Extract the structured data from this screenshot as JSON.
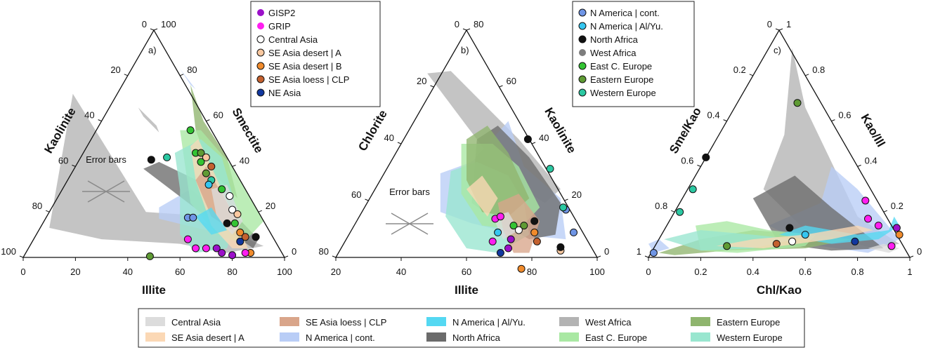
{
  "colors": {
    "GISP2": "#9b10c9",
    "GRIP": "#ff1ef0",
    "Central Asia": "#ffffff",
    "SE Asia desert | A": "#f9c8a0",
    "SE Asia desert | B": "#f08b2c",
    "SE Asia loess | CLP": "#c4612f",
    "NE Asia": "#11379f",
    "N America | cont.": "#6f95e5",
    "N America | Al/Yu.": "#35c6f0",
    "North Africa": "#111111",
    "West Africa": "#7d7d7d",
    "East C. Europe": "#33c433",
    "Eastern Europe": "#5f9b34",
    "Western Europe": "#2bc8a2"
  },
  "area_colors": {
    "Central Asia": "#dcdcdc",
    "SE Asia desert | A": "#fbd8b5",
    "SE Asia loess | CLP": "#d9a58a",
    "N America | cont.": "#b9cdf6",
    "N America | Al/Yu.": "#54d8f2",
    "North Africa": "#6b6b6b",
    "West Africa": "#b3b3b3",
    "East C. Europe": "#a9e8a3",
    "Eastern Europe": "#8fb56e",
    "Western Europe": "#99e6cf"
  },
  "chart_data": [
    {
      "type": "scatter",
      "panel": "a)",
      "axes": {
        "bottom": "Illite",
        "left": "Kaolinite",
        "right": "Smectite"
      },
      "ticks": {
        "bottom": [
          "0",
          "20",
          "40",
          "60",
          "80",
          "100"
        ],
        "left": [
          "0",
          "20",
          "40",
          "60",
          "80",
          "100"
        ],
        "right": [
          "0",
          "20",
          "40",
          "60",
          "80",
          "100"
        ]
      },
      "points": [
        {
          "series": "N America | cont.",
          "x": [
            63,
            17.5
          ]
        },
        {
          "series": "N America | cont.",
          "x": [
            65,
            17.5
          ]
        },
        {
          "series": "North Africa",
          "x": [
            49,
            43
          ]
        },
        {
          "series": "Western Europe",
          "x": [
            55,
            44
          ]
        },
        {
          "series": "East C. Europe",
          "x": [
            64,
            56
          ]
        },
        {
          "series": "East C. Europe",
          "x": [
            66,
            46
          ]
        },
        {
          "series": "Eastern Europe",
          "x": [
            68,
            46
          ]
        },
        {
          "series": "SE Asia desert | A",
          "x": [
            70,
            44
          ]
        },
        {
          "series": "East C. Europe",
          "x": [
            68,
            42
          ]
        },
        {
          "series": "SE Asia loess | CLP",
          "x": [
            72,
            40
          ]
        },
        {
          "series": "Eastern Europe",
          "x": [
            70,
            37
          ]
        },
        {
          "series": "Western Europe",
          "x": [
            72,
            34
          ]
        },
        {
          "series": "East C. Europe",
          "x": [
            76,
            30
          ]
        },
        {
          "series": "Central Asia",
          "x": [
            79,
            27
          ]
        },
        {
          "series": "N America | Al/Yu.",
          "x": [
            71,
            32
          ]
        },
        {
          "series": "Central Asia",
          "x": [
            80,
            21
          ]
        },
        {
          "series": "SE Asia desert | A",
          "x": [
            82,
            19
          ]
        },
        {
          "series": "North Africa",
          "x": [
            78,
            15
          ]
        },
        {
          "series": "East C. Europe",
          "x": [
            81,
            15
          ]
        },
        {
          "series": "SE Asia desert | B",
          "x": [
            83,
            11
          ]
        },
        {
          "series": "SE Asia loess | CLP",
          "x": [
            85,
            9
          ]
        },
        {
          "series": "NE Asia",
          "x": [
            83,
            7
          ]
        },
        {
          "series": "North Africa",
          "x": [
            89,
            9
          ]
        },
        {
          "series": "GRIP",
          "x": [
            63,
            8
          ]
        },
        {
          "series": "GRIP",
          "x": [
            66,
            4
          ]
        },
        {
          "series": "GRIP",
          "x": [
            70,
            4
          ]
        },
        {
          "series": "GISP2",
          "x": [
            74,
            4
          ]
        },
        {
          "series": "GISP2",
          "x": [
            76,
            2
          ]
        },
        {
          "series": "GISP2",
          "x": [
            80,
            1
          ]
        },
        {
          "series": "SE Asia desert | B",
          "x": [
            87,
            2
          ]
        },
        {
          "series": "GRIP",
          "x": [
            85,
            2
          ]
        },
        {
          "series": "Eastern Europe",
          "x": [
            48.5,
            0.5
          ]
        }
      ],
      "inset": "Error bars"
    },
    {
      "type": "scatter",
      "panel": "b)",
      "axes": {
        "bottom": "Illite",
        "left": "Chlorite",
        "right": "Kaolinite"
      },
      "ticks": {
        "bottom": [
          "20",
          "40",
          "60",
          "80",
          "100"
        ],
        "left": [
          "0",
          "20",
          "40",
          "60",
          "80"
        ],
        "right": [
          "0",
          "20",
          "40",
          "60",
          "80"
        ]
      },
      "points": [
        {
          "series": "North Africa",
          "x": [
            73.5,
            52
          ]
        },
        {
          "series": "Western Europe",
          "x": [
            82,
            39
          ]
        },
        {
          "series": "N America | cont.",
          "x": [
            88,
            21
          ]
        },
        {
          "series": "Western Europe",
          "x": [
            87,
            22
          ]
        },
        {
          "series": "N America | cont.",
          "x": [
            91,
            11
          ]
        },
        {
          "series": "GRIP",
          "x": [
            61,
            17
          ]
        },
        {
          "series": "GRIP",
          "x": [
            63,
            18
          ]
        },
        {
          "series": "N America | Al/Yu.",
          "x": [
            62,
            11
          ]
        },
        {
          "series": "North Africa",
          "x": [
            76,
            16
          ]
        },
        {
          "series": "East C. Europe",
          "x": [
            68,
            14
          ]
        },
        {
          "series": "Eastern Europe",
          "x": [
            72,
            14
          ]
        },
        {
          "series": "Central Asia",
          "x": [
            70,
            12
          ]
        },
        {
          "series": "SE Asia desert | B",
          "x": [
            76,
            11
          ]
        },
        {
          "series": "SE Asia loess | CLP",
          "x": [
            77,
            7
          ]
        },
        {
          "series": "GISP2",
          "x": [
            67,
            8
          ]
        },
        {
          "series": "GISP2",
          "x": [
            66,
            4
          ]
        },
        {
          "series": "GRIP",
          "x": [
            60,
            7
          ]
        },
        {
          "series": "NE Asia",
          "x": [
            63,
            2
          ]
        },
        {
          "series": "SE Asia desert | A",
          "x": [
            86,
            3
          ]
        },
        {
          "series": "North Africa",
          "x": [
            86,
            4.5
          ]
        },
        {
          "series": "SE Asia desert | B",
          "x": [
            71,
            -5
          ]
        }
      ],
      "inset": "Error bars"
    },
    {
      "type": "scatter",
      "panel": "c)",
      "axes": {
        "bottom": "Chl/Kao",
        "left": "Sme/Kao",
        "right": "Kao/Ill"
      },
      "ticks": {
        "bottom": [
          "0",
          "0.2",
          "0.4",
          "0.6",
          "0.8",
          "1"
        ],
        "left": [
          "0",
          "0.2",
          "0.4",
          "0.6",
          "0.8",
          "1"
        ],
        "right": [
          "0",
          "0.2",
          "0.4",
          "0.6",
          "0.8",
          "1"
        ]
      },
      "points": [
        {
          "series": "Eastern Europe",
          "x": [
            0.57,
            0.68
          ]
        },
        {
          "series": "North Africa",
          "x": [
            0.22,
            0.44
          ]
        },
        {
          "series": "Western Europe",
          "x": [
            0.17,
            0.3
          ]
        },
        {
          "series": "Western Europe",
          "x": [
            0.12,
            0.2
          ]
        },
        {
          "series": "N America | cont.",
          "x": [
            0.02,
            0.02
          ]
        },
        {
          "series": "GRIP",
          "x": [
            0.83,
            0.25
          ]
        },
        {
          "series": "GRIP",
          "x": [
            0.84,
            0.17
          ]
        },
        {
          "series": "GRIP",
          "x": [
            0.88,
            0.14
          ]
        },
        {
          "series": "North Africa",
          "x": [
            0.54,
            0.13
          ]
        },
        {
          "series": "GISP2",
          "x": [
            0.95,
            0.13
          ]
        },
        {
          "series": "SE Asia desert | B",
          "x": [
            0.96,
            0.1
          ]
        },
        {
          "series": "Eastern Europe",
          "x": [
            0.3,
            0.05
          ]
        },
        {
          "series": "Central Asia",
          "x": [
            0.55,
            0.07
          ]
        },
        {
          "series": "N America | Al/Yu.",
          "x": [
            0.6,
            0.1
          ]
        },
        {
          "series": "SE Asia loess | CLP",
          "x": [
            0.49,
            0.06
          ]
        },
        {
          "series": "NE Asia",
          "x": [
            0.79,
            0.07
          ]
        },
        {
          "series": "GRIP",
          "x": [
            0.93,
            0.05
          ]
        }
      ]
    }
  ],
  "top_legend_1": [
    "GISP2",
    "GRIP",
    "Central Asia",
    "SE Asia desert | A",
    "SE Asia desert | B",
    "SE Asia loess | CLP",
    "NE Asia"
  ],
  "top_legend_2": [
    "N America | cont.",
    "N America | Al/Yu.",
    "North Africa",
    "West Africa",
    "East C. Europe",
    "Eastern Europe",
    "Western Europe"
  ],
  "bottom_legend": [
    [
      "Central Asia",
      "SE Asia desert | A"
    ],
    [
      "SE Asia loess | CLP",
      "N America | cont."
    ],
    [
      "N America | Al/Yu.",
      "North Africa"
    ],
    [
      "West Africa",
      "East C. Europe"
    ],
    [
      "Eastern Europe",
      "Western Europe"
    ]
  ]
}
